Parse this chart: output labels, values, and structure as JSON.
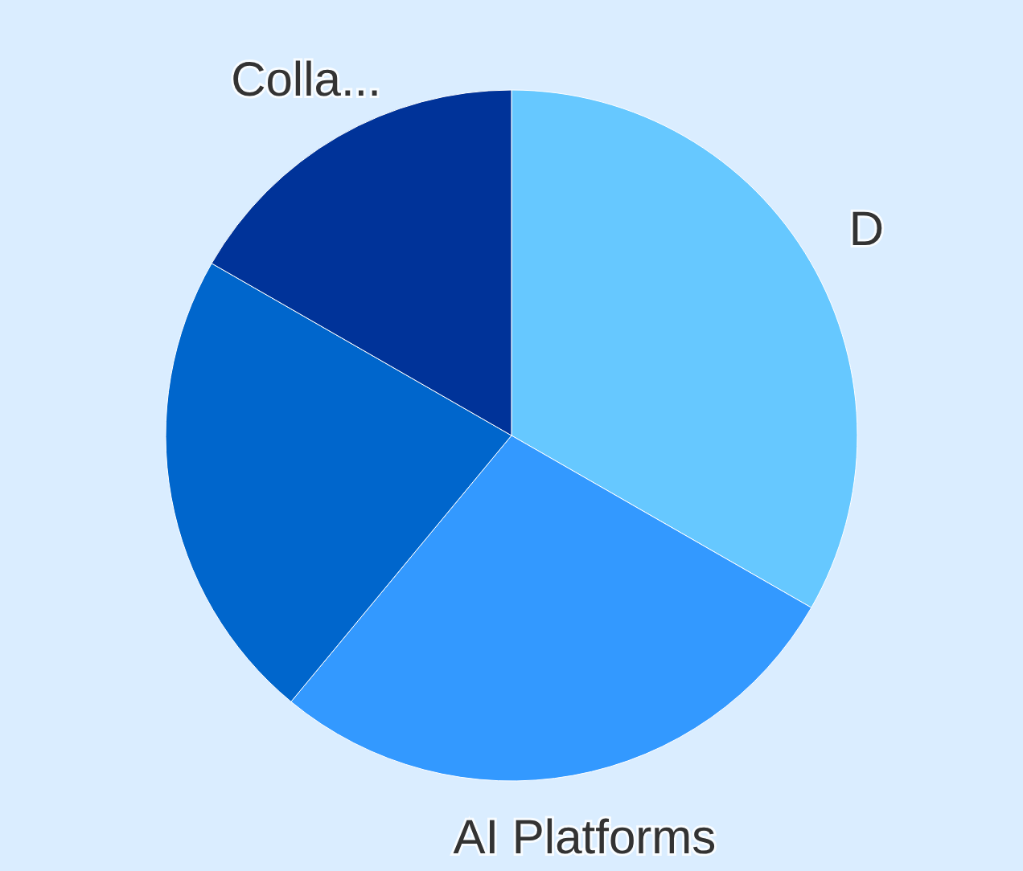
{
  "chart_data": {
    "type": "pie",
    "categories": [
      "D",
      "AI Platforms",
      null,
      "Colla..."
    ],
    "values": [
      33.3,
      27.7,
      22.3,
      16.7
    ],
    "colors": [
      "#66c8ff",
      "#3399ff",
      "#0066cc",
      "#003399"
    ]
  }
}
